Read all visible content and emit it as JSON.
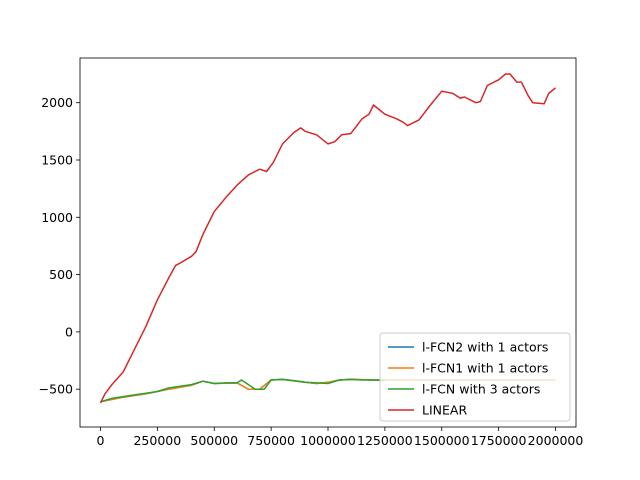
{
  "chart_data": {
    "type": "line",
    "title": "",
    "xlabel": "",
    "ylabel": "",
    "xlim": [
      -90000,
      2090000
    ],
    "ylim": [
      -830,
      2390
    ],
    "xticks": [
      0,
      250000,
      500000,
      750000,
      1000000,
      1250000,
      1500000,
      1750000,
      2000000
    ],
    "xtick_labels": [
      "0",
      "250000",
      "500000",
      "750000",
      "1000000",
      "1250000",
      "1500000",
      "1750000",
      "2000000"
    ],
    "yticks": [
      -500,
      0,
      500,
      1000,
      1500,
      2000
    ],
    "ytick_labels": [
      "−500",
      "0",
      "500",
      "1000",
      "1500",
      "2000"
    ],
    "grid": false,
    "legend_position": "lower-right",
    "series": [
      {
        "name": "l-FCN2 with 1 actors",
        "color": "#1f77b4",
        "x": [
          0,
          100000,
          200000,
          300000,
          400000,
          450000,
          500000,
          600000,
          650000,
          700000,
          750000,
          800000,
          900000,
          950000,
          1000000,
          1050000,
          1100000,
          1200000,
          1300000,
          1400000,
          1500000,
          1600000,
          1700000,
          1800000,
          1900000,
          2000000
        ],
        "y": [
          -610,
          -570,
          -540,
          -500,
          -465,
          -430,
          -450,
          -445,
          -500,
          -500,
          -420,
          -415,
          -440,
          -450,
          -440,
          -420,
          -415,
          -420,
          -420,
          -420,
          -420,
          -420,
          -420,
          -420,
          -420,
          -420
        ]
      },
      {
        "name": "l-FCN1 with 1 actors",
        "color": "#ff7f0e",
        "x": [
          0,
          100000,
          200000,
          300000,
          400000,
          450000,
          500000,
          600000,
          650000,
          700000,
          750000,
          800000,
          900000,
          950000,
          1000000,
          1050000,
          1100000,
          1200000,
          1300000,
          1400000,
          1500000,
          1600000,
          1700000,
          1800000,
          1900000,
          2000000
        ],
        "y": [
          -610,
          -570,
          -540,
          -500,
          -465,
          -430,
          -450,
          -445,
          -500,
          -500,
          -420,
          -415,
          -440,
          -450,
          -440,
          -420,
          -415,
          -420,
          -420,
          -420,
          -420,
          -420,
          -420,
          -420,
          -420,
          -420
        ]
      },
      {
        "name": "l-FCN with 3 actors",
        "color": "#2ca02c",
        "x": [
          0,
          50000,
          100000,
          150000,
          200000,
          250000,
          300000,
          350000,
          400000,
          450000,
          500000,
          550000,
          600000,
          620000,
          650000,
          680000,
          700000,
          720000,
          750000,
          800000,
          850000,
          900000,
          950000,
          1000000,
          1050000,
          1100000,
          1150000,
          1200000,
          1250000
        ],
        "y": [
          -610,
          -580,
          -565,
          -550,
          -535,
          -520,
          -490,
          -475,
          -460,
          -430,
          -450,
          -445,
          -445,
          -420,
          -460,
          -500,
          -500,
          -500,
          -420,
          -415,
          -425,
          -440,
          -445,
          -450,
          -420,
          -415,
          -420,
          -420,
          -425
        ]
      },
      {
        "name": "LINEAR",
        "color": "#d62728",
        "x": [
          0,
          20000,
          50000,
          100000,
          150000,
          200000,
          250000,
          300000,
          330000,
          350000,
          400000,
          420000,
          450000,
          500000,
          550000,
          600000,
          650000,
          700000,
          730000,
          760000,
          800000,
          850000,
          880000,
          900000,
          950000,
          1000000,
          1030000,
          1060000,
          1100000,
          1150000,
          1180000,
          1200000,
          1250000,
          1300000,
          1330000,
          1350000,
          1400000,
          1450000,
          1500000,
          1550000,
          1580000,
          1600000,
          1650000,
          1670000,
          1700000,
          1750000,
          1780000,
          1800000,
          1830000,
          1850000,
          1880000,
          1900000,
          1950000,
          1970000,
          2000000
        ],
        "y": [
          -620,
          -540,
          -460,
          -350,
          -150,
          50,
          280,
          470,
          580,
          600,
          660,
          700,
          850,
          1050,
          1170,
          1280,
          1370,
          1420,
          1400,
          1480,
          1640,
          1740,
          1780,
          1750,
          1720,
          1640,
          1660,
          1720,
          1730,
          1860,
          1900,
          1980,
          1900,
          1860,
          1830,
          1800,
          1850,
          1980,
          2100,
          2080,
          2040,
          2050,
          2000,
          2010,
          2150,
          2200,
          2250,
          2250,
          2180,
          2180,
          2060,
          2000,
          1990,
          2080,
          2130
        ]
      }
    ]
  }
}
